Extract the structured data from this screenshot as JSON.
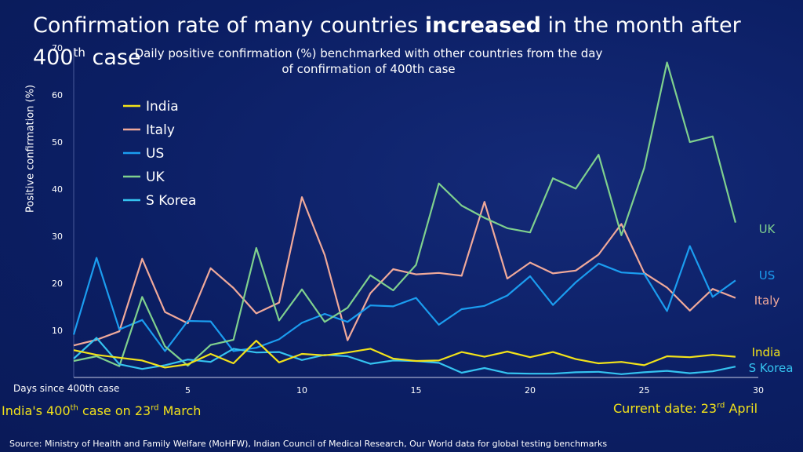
{
  "header": {
    "title_pre": "Confirmation rate of many countries ",
    "title_bold": "increased",
    "title_post": " in the month after",
    "title_line2_num": "400",
    "title_line2_sup": "th",
    "title_line2_word": " case",
    "subtitle_line1": "Daily positive confirmation (%) benchmarked with other countries from the day",
    "subtitle_line2": "of confirmation of 400th case"
  },
  "notes": {
    "left_pre": "India's 400",
    "left_sup": "th",
    "left_post": " case on 23",
    "left_sup2": "rd",
    "left_end": " March",
    "right_pre": "Current date: 23",
    "right_sup": "rd",
    "right_end": " April"
  },
  "source": "Source: Ministry of Health and Family Welfare (MoHFW), Indian Council of Medical Research, Our World data for global testing benchmarks",
  "colors": {
    "India": "#f2e21a",
    "Italy": "#f0a99a",
    "US": "#1b9df0",
    "UK": "#7fd08e",
    "S Korea": "#35c3f0"
  },
  "chart_data": {
    "type": "line",
    "title": "Confirmation rate of many countries increased in the month after 400th case",
    "xlabel": "Days since 400th case",
    "ylabel": "Positive confirmation (%)",
    "xlim": [
      0,
      30
    ],
    "ylim": [
      0,
      70
    ],
    "xticks": [
      5,
      10,
      15,
      20,
      25,
      30
    ],
    "yticks": [
      10,
      20,
      30,
      40,
      50,
      60,
      70
    ],
    "legend": [
      "India",
      "Italy",
      "US",
      "UK",
      "S Korea"
    ],
    "legend_position": "top-left",
    "x": [
      0,
      1,
      2,
      3,
      4,
      5,
      6,
      7,
      8,
      9,
      10,
      11,
      12,
      13,
      14,
      15,
      16,
      17,
      18,
      19,
      20,
      21,
      22,
      23,
      24,
      25,
      26,
      27,
      28,
      29
    ],
    "series": [
      {
        "name": "India",
        "end_label": "India",
        "values": [
          5.8,
          4.8,
          4.2,
          3.6,
          2.1,
          2.8,
          5.0,
          3.0,
          7.8,
          3.2,
          5.0,
          4.7,
          5.3,
          6.1,
          4.0,
          3.5,
          3.6,
          5.4,
          4.4,
          5.5,
          4.3,
          5.4,
          3.9,
          3.0,
          3.3,
          2.6,
          4.5,
          4.3,
          4.8,
          4.4
        ]
      },
      {
        "name": "Italy",
        "end_label": "Italy",
        "values": [
          6.8,
          8.0,
          9.8,
          25.2,
          13.9,
          11.5,
          23.2,
          19.0,
          13.6,
          15.9,
          38.3,
          26.0,
          7.9,
          17.9,
          23.0,
          21.9,
          22.2,
          21.6,
          37.3,
          21.0,
          24.4,
          22.1,
          22.7,
          26.1,
          32.6,
          22.2,
          19.1,
          14.2,
          18.8,
          16.9
        ]
      },
      {
        "name": "US",
        "end_label": "US",
        "values": [
          9.1,
          25.4,
          10.2,
          12.2,
          5.6,
          12.0,
          11.9,
          5.6,
          6.3,
          8.1,
          11.6,
          13.5,
          11.8,
          15.3,
          15.1,
          16.9,
          11.2,
          14.5,
          15.2,
          17.4,
          21.5,
          15.4,
          20.2,
          24.2,
          22.3,
          22.0,
          14.1,
          27.9,
          17.1,
          20.6
        ]
      },
      {
        "name": "UK",
        "end_label": "UK",
        "values": [
          3.5,
          4.5,
          2.4,
          17.1,
          6.6,
          2.5,
          6.9,
          8.0,
          27.5,
          12.1,
          18.7,
          11.8,
          14.8,
          21.7,
          18.5,
          23.9,
          41.2,
          36.5,
          33.9,
          31.7,
          30.8,
          42.3,
          40.1,
          47.3,
          30.2,
          44.5,
          66.9,
          50.0,
          51.2,
          32.9
        ]
      },
      {
        "name": "S Korea",
        "end_label": "S Korea",
        "values": [
          4.0,
          8.4,
          2.8,
          1.8,
          2.6,
          3.8,
          3.3,
          6.1,
          5.3,
          5.4,
          3.7,
          4.8,
          4.5,
          2.9,
          3.6,
          3.5,
          3.1,
          1.0,
          2.0,
          0.9,
          0.8,
          0.8,
          1.1,
          1.2,
          0.7,
          1.1,
          1.4,
          0.9,
          1.3,
          2.3
        ]
      }
    ]
  }
}
